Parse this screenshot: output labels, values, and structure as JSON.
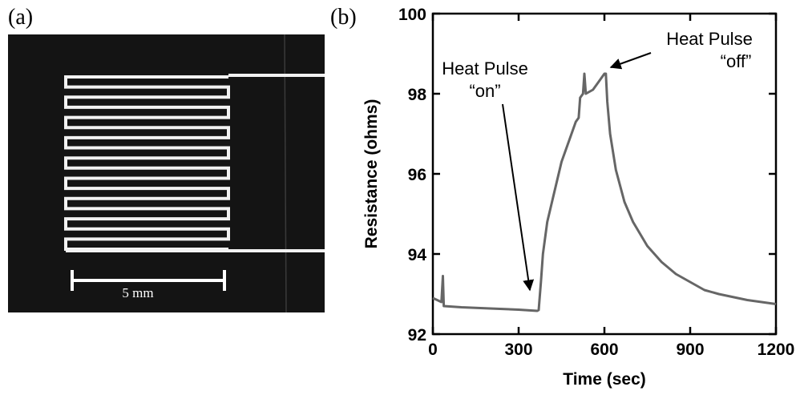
{
  "figure": {
    "panel_a_label": "(a)",
    "scale_bar_label": "5 mm",
    "panel_b_label": "(b)"
  },
  "chart_data": {
    "type": "line",
    "xlabel": "Time (sec)",
    "ylabel": "Resistance (ohms)",
    "xlim": [
      0,
      1200
    ],
    "xticks": [
      0,
      300,
      600,
      900,
      1200
    ],
    "ylim": [
      92,
      100
    ],
    "yticks": [
      92,
      94,
      96,
      98,
      100
    ],
    "annotations": [
      {
        "lines": [
          "Heat Pulse",
          "“on”"
        ]
      },
      {
        "lines": [
          "Heat Pulse",
          "“off”"
        ]
      }
    ],
    "series": [
      {
        "color": "#666666",
        "x": [
          0,
          15,
          30,
          35,
          38,
          100,
          200,
          300,
          365,
          370,
          378,
          385,
          400,
          420,
          450,
          480,
          500,
          510,
          515,
          525,
          530,
          535,
          560,
          580,
          600,
          605,
          610,
          620,
          640,
          670,
          700,
          750,
          800,
          850,
          900,
          950,
          1000,
          1100,
          1200
        ],
        "values": [
          92.9,
          92.85,
          92.8,
          93.45,
          92.7,
          92.67,
          92.64,
          92.61,
          92.58,
          92.6,
          93.3,
          94.0,
          94.8,
          95.4,
          96.3,
          96.9,
          97.3,
          97.4,
          97.9,
          98.0,
          98.5,
          98.0,
          98.1,
          98.3,
          98.5,
          98.5,
          97.8,
          97.0,
          96.1,
          95.3,
          94.8,
          94.2,
          93.8,
          93.5,
          93.3,
          93.1,
          93.0,
          92.85,
          92.75
        ]
      }
    ]
  }
}
